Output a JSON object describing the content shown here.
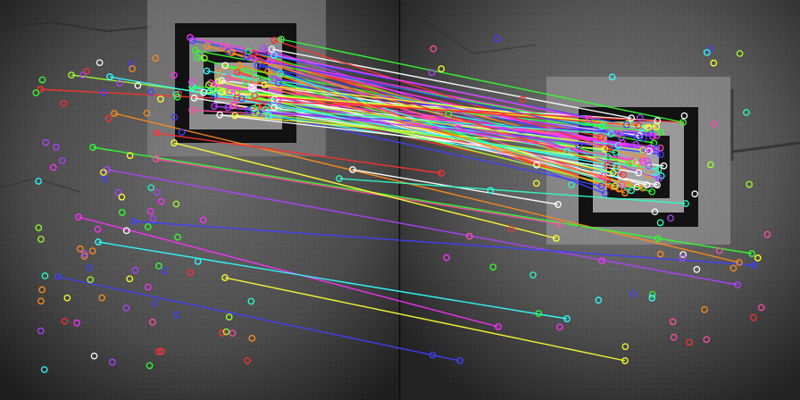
{
  "image": {
    "description_kind": "feature-matching visualization between two grayscale photos placed side by side",
    "palette": [
      "#ff3030",
      "#30ff30",
      "#4040ff",
      "#ffff30",
      "#ff30ff",
      "#30ffff",
      "#ff8c1a",
      "#b040ff",
      "#ff4da6",
      "#9dff2e",
      "#ffffff",
      "#2effc0"
    ],
    "keypoint_style": "hollow circle",
    "match_style": "straight line connecting keypoints"
  }
}
